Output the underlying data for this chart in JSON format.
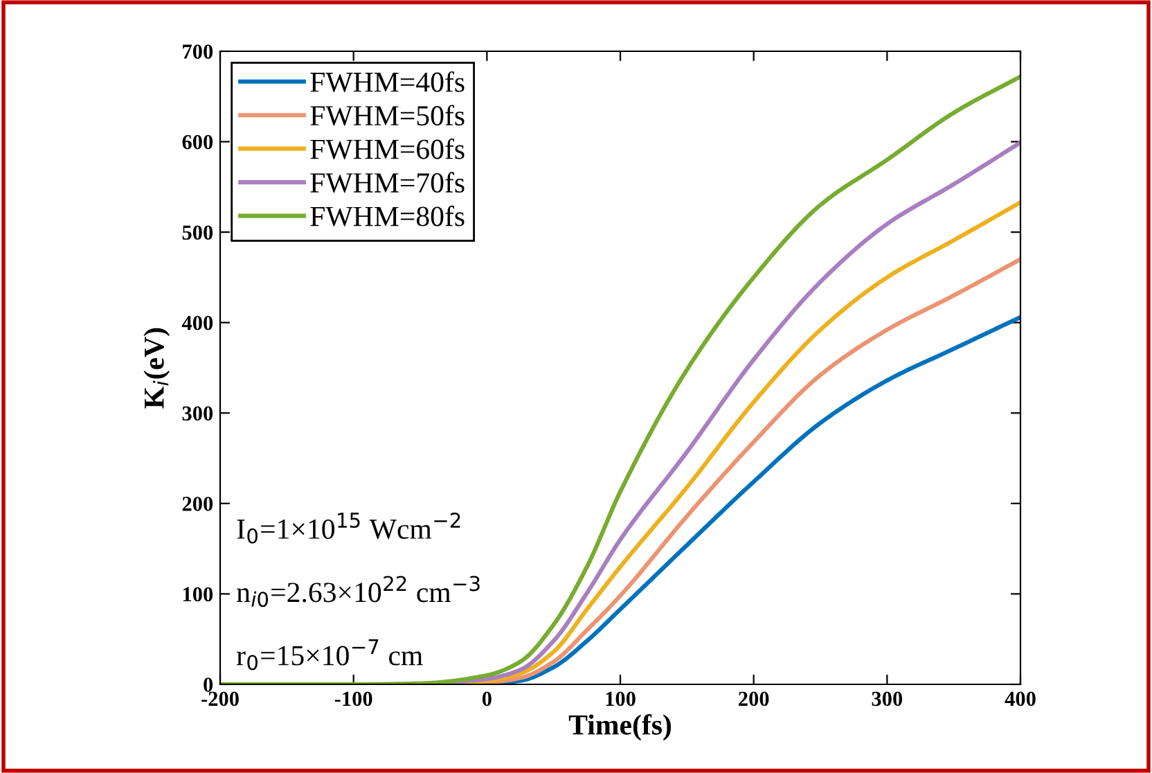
{
  "chart_data": {
    "type": "line",
    "xlabel": "Time(fs)",
    "ylabel": "K$_{i}$(eV)",
    "x": [
      -200,
      -100,
      -50,
      0,
      25,
      50,
      75,
      100,
      150,
      200,
      250,
      300,
      350,
      400
    ],
    "series": [
      {
        "name": "FWHM=40fs",
        "color": "#0072bd",
        "values": [
          null,
          null,
          0,
          1,
          4,
          19,
          48,
          83,
          154,
          224,
          289,
          336,
          371,
          406
        ]
      },
      {
        "name": "FWHM=50fs",
        "color": "#ec9472",
        "values": [
          null,
          null,
          0,
          2,
          7,
          25,
          60,
          98,
          186,
          268,
          342,
          392,
          430,
          470
        ]
      },
      {
        "name": "FWHM=60fs",
        "color": "#edb120",
        "values": [
          null,
          null,
          0,
          4,
          12,
          36,
          83,
          130,
          218,
          312,
          392,
          450,
          491,
          533
        ]
      },
      {
        "name": "FWHM=70fs",
        "color": "#a97fc0",
        "values": [
          null,
          null,
          0,
          6,
          16,
          48,
          101,
          160,
          257,
          359,
          445,
          509,
          553,
          599
        ]
      },
      {
        "name": "FWHM=80fs",
        "color": "#77ac30",
        "values": [
          0,
          0,
          1,
          10,
          25,
          66,
          130,
          213,
          348,
          450,
          530,
          580,
          632,
          672
        ]
      }
    ],
    "xlim": [
      -200,
      400
    ],
    "xticks": [
      -200,
      -100,
      0,
      100,
      200,
      300,
      400
    ],
    "ylim": [
      0,
      700
    ],
    "yticks": [
      0,
      100,
      200,
      300,
      400,
      500,
      600,
      700
    ],
    "annotations": [
      "I$_{0}$=1×10$^{15}$ Wcm$^{−2}$",
      "n$_{i0}$=2.63×10$^{22}$ cm$^{−3}$",
      "r$_{0}$=15×10$^{−7}$ cm"
    ],
    "legend": "top left",
    "grid": false,
    "line_style": "solid"
  }
}
